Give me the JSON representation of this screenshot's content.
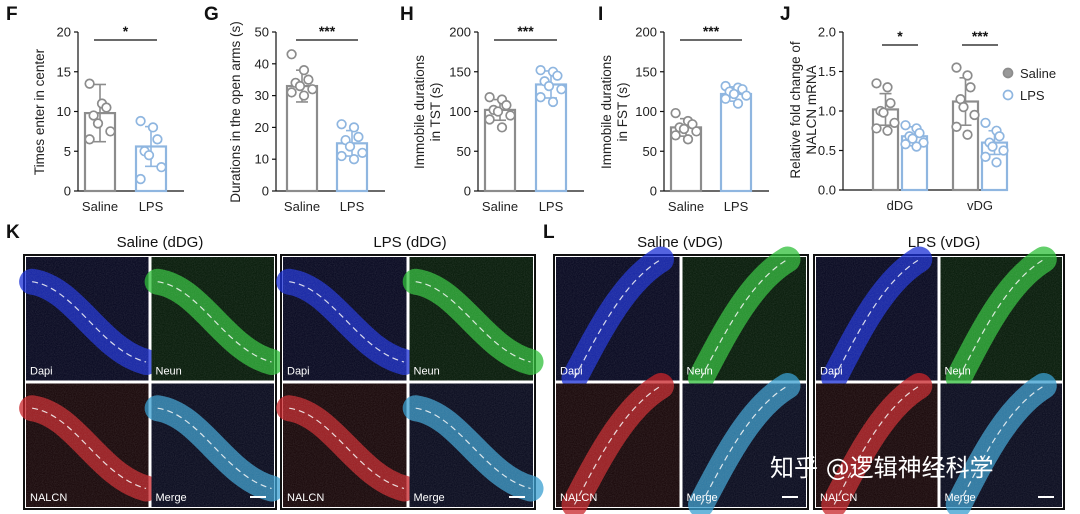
{
  "colors": {
    "saline": "#8c8c8c",
    "lps": "#8fb6e0",
    "dapi": "#1a2fd6",
    "neun": "#2fbf3a",
    "nalcn": "#c8242a",
    "frame": "#111111"
  },
  "chart_data": [
    {
      "panel": "F",
      "type": "bar",
      "categories": [
        "Saline",
        "LPS"
      ],
      "values": [
        9.8,
        5.6
      ],
      "errors": [
        3.6,
        2.5
      ],
      "points": [
        [
          13.5,
          11.0,
          10.5,
          9.5,
          8.5,
          7.5,
          6.5
        ],
        [
          8.8,
          8.0,
          6.5,
          5.0,
          4.5,
          3.0,
          1.5
        ]
      ],
      "ylabel": "Times enter in center",
      "ylim": [
        0,
        20
      ],
      "yticks": [
        0,
        5,
        10,
        15,
        20
      ],
      "significance": "*"
    },
    {
      "panel": "G",
      "type": "bar",
      "categories": [
        "Saline",
        "LPS"
      ],
      "values": [
        33,
        15
      ],
      "errors": [
        5,
        4
      ],
      "points": [
        [
          43,
          38,
          35,
          34,
          33,
          32,
          31,
          30
        ],
        [
          21,
          20,
          17,
          16,
          14,
          12,
          11,
          10
        ]
      ],
      "ylabel": "Durations in the open arms (s)",
      "ylim": [
        0,
        50
      ],
      "yticks": [
        0,
        10,
        20,
        30,
        40,
        50
      ],
      "significance": "***"
    },
    {
      "panel": "H",
      "type": "bar",
      "categories": [
        "Saline",
        "LPS"
      ],
      "values": [
        102,
        134
      ],
      "errors": [
        13,
        17
      ],
      "points": [
        [
          118,
          115,
          108,
          102,
          100,
          95,
          90,
          80
        ],
        [
          152,
          150,
          145,
          138,
          132,
          128,
          118,
          112
        ]
      ],
      "ylabel": "Immobile durations in TST (s)",
      "ylim": [
        0,
        200
      ],
      "yticks": [
        0,
        50,
        100,
        150,
        200
      ],
      "significance": "***"
    },
    {
      "panel": "I",
      "type": "bar",
      "categories": [
        "Saline",
        "LPS"
      ],
      "values": [
        80,
        122
      ],
      "errors": [
        11,
        9
      ],
      "points": [
        [
          98,
          88,
          84,
          80,
          78,
          75,
          70,
          65
        ],
        [
          132,
          130,
          128,
          125,
          122,
          120,
          116,
          110
        ]
      ],
      "ylabel": "Immobile durations in FST (s)",
      "ylim": [
        0,
        200
      ],
      "yticks": [
        0,
        50,
        100,
        150,
        200
      ],
      "significance": "***"
    },
    {
      "panel": "J",
      "type": "bar",
      "categories": [
        "dDG",
        "vDG"
      ],
      "series": [
        {
          "name": "Saline",
          "values": [
            1.02,
            1.12
          ],
          "errors": [
            0.2,
            0.3
          ],
          "points": [
            [
              1.35,
              1.3,
              1.1,
              1.0,
              0.98,
              0.85,
              0.78,
              0.75
            ],
            [
              1.55,
              1.45,
              1.3,
              1.15,
              1.05,
              0.95,
              0.8,
              0.7
            ]
          ]
        },
        {
          "name": "LPS",
          "values": [
            0.68,
            0.6
          ],
          "errors": [
            0.12,
            0.15
          ],
          "points": [
            [
              0.82,
              0.78,
              0.72,
              0.68,
              0.65,
              0.6,
              0.58,
              0.55
            ],
            [
              0.85,
              0.75,
              0.68,
              0.6,
              0.55,
              0.5,
              0.42,
              0.35
            ]
          ]
        }
      ],
      "ylabel": "Relative fold change of NALCN mRNA",
      "ylim": [
        0,
        2.0
      ],
      "yticks": [
        "0.0",
        "0.5",
        "1.0",
        "1.5",
        "2.0"
      ],
      "significance": [
        "*",
        "***"
      ],
      "legend": "top-right"
    }
  ],
  "panels": {
    "F": "F",
    "G": "G",
    "H": "H",
    "I": "I",
    "J": "J",
    "K": "K",
    "L": "L",
    "ylabels": {
      "F": "Times enter in center",
      "G": "Durations in the open arms (s)",
      "H1": "Immobile durations",
      "H2": "in TST (s)",
      "I1": "Immobile durations",
      "I2": "in FST (s)",
      "J1": "Relative fold change of",
      "J2": "NALCN mRNA"
    }
  },
  "micrographs": {
    "K_left_title": "Saline (dDG)",
    "K_right_title": "LPS (dDG)",
    "L_left_title": "Saline (vDG)",
    "L_right_title": "LPS (vDG)",
    "labels": {
      "dapi": "Dapi",
      "neun": "Neun",
      "nalcn": "NALCN",
      "merge": "Merge"
    }
  },
  "watermark": "知乎 @逻辑神经科学"
}
